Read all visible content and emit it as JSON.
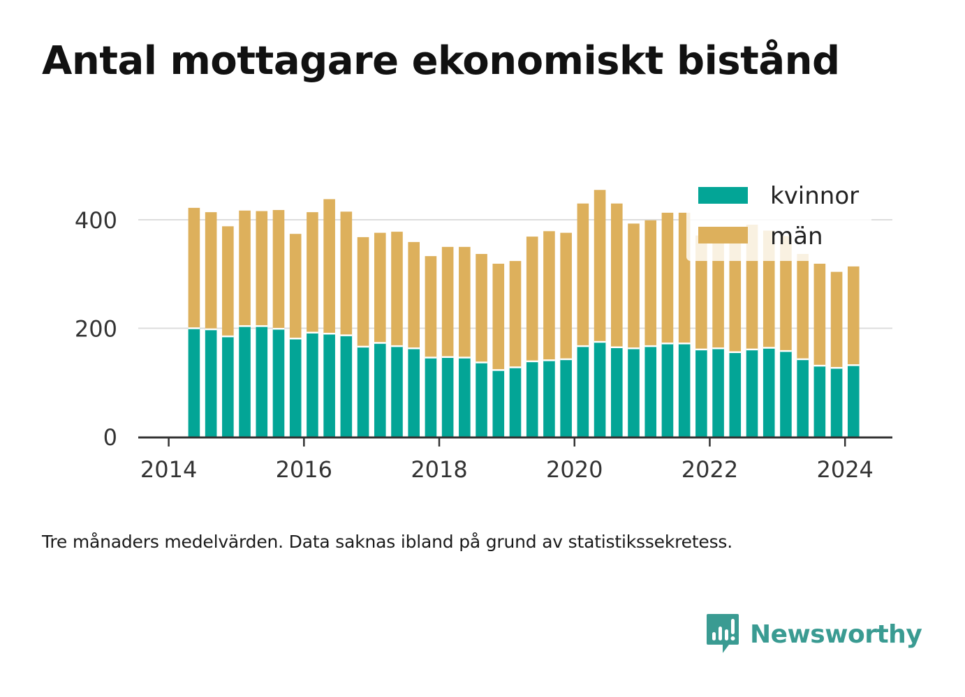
{
  "title": "Antal mottagare ekonomiskt bistånd",
  "note": "Tre månaders medelvärden. Data saknas ibland på grund av statistikssekretess.",
  "brand": {
    "name": "Newsworthy",
    "color": "#3a9b92"
  },
  "colors": {
    "kvinnor": "#03a596",
    "man": "#ddb05c",
    "grid": "#dddddd",
    "axis": "#333333"
  },
  "chart_data": {
    "type": "bar",
    "stacked": true,
    "title": "",
    "xlabel": "",
    "ylabel": "",
    "ylim": [
      0,
      470
    ],
    "yticks": [
      0,
      200,
      400
    ],
    "xticks": [
      2014,
      2016,
      2018,
      2020,
      2022,
      2024
    ],
    "xlim": [
      2013.55,
      2024.7
    ],
    "grid": true,
    "legend_position": "top-right",
    "x": [
      2014.375,
      2014.625,
      2014.875,
      2015.125,
      2015.375,
      2015.625,
      2015.875,
      2016.125,
      2016.375,
      2016.625,
      2016.875,
      2017.125,
      2017.375,
      2017.625,
      2017.875,
      2018.125,
      2018.375,
      2018.625,
      2018.875,
      2019.125,
      2019.375,
      2019.625,
      2019.875,
      2020.125,
      2020.375,
      2020.625,
      2020.875,
      2021.125,
      2021.375,
      2021.625,
      2021.875,
      2022.125,
      2022.375,
      2022.625,
      2022.875,
      2023.125,
      2023.375,
      2023.625,
      2023.875,
      2024.125
    ],
    "series": [
      {
        "name": "kvinnor",
        "values": [
          200,
          198,
          185,
          204,
          204,
          199,
          181,
          192,
          190,
          187,
          166,
          173,
          167,
          163,
          146,
          147,
          146,
          137,
          123,
          128,
          139,
          141,
          143,
          167,
          175,
          165,
          163,
          167,
          172,
          172,
          161,
          163,
          156,
          161,
          164,
          158,
          143,
          131,
          127,
          132
        ]
      },
      {
        "name": "män",
        "values": [
          222,
          216,
          203,
          213,
          212,
          219,
          193,
          222,
          248,
          228,
          202,
          203,
          211,
          196,
          187,
          203,
          204,
          200,
          196,
          196,
          230,
          238,
          233,
          263,
          280,
          265,
          230,
          232,
          241,
          241,
          210,
          201,
          217,
          230,
          216,
          212,
          194,
          188,
          177,
          182
        ]
      }
    ]
  }
}
